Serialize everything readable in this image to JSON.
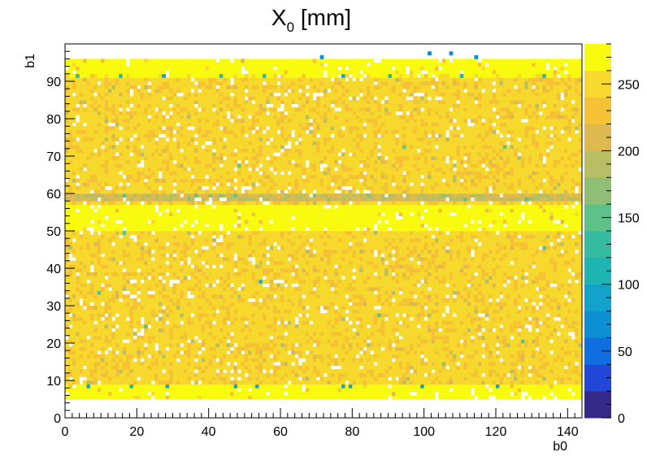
{
  "chart_data": {
    "type": "heatmap",
    "title": "X",
    "title_subscript": "0",
    "title_suffix": " [mm]",
    "xlabel": "b0",
    "ylabel": "b1",
    "xlim": [
      0,
      144
    ],
    "ylim": [
      0,
      100
    ],
    "zlim": [
      0,
      280
    ],
    "x_ticks": [
      0,
      20,
      40,
      60,
      80,
      100,
      120,
      140
    ],
    "y_ticks": [
      0,
      10,
      20,
      30,
      40,
      50,
      60,
      70,
      80,
      90
    ],
    "z_ticks": [
      0,
      50,
      100,
      150,
      200,
      250
    ],
    "grid": false,
    "colormap": [
      "#352a87",
      "#2146d8",
      "#0f6fe0",
      "#0d8fd4",
      "#11a3cc",
      "#1fb4b4",
      "#35bca0",
      "#5fc18a",
      "#8ebf74",
      "#b9bd63",
      "#ddb94f",
      "#f5c236",
      "#f7d82c",
      "#f9fb0e"
    ],
    "filled_x_range": [
      0,
      144
    ],
    "filled_y_range": [
      5,
      96
    ],
    "rows": [
      {
        "y": [
          5,
          9
        ],
        "value": 278
      },
      {
        "y": [
          9,
          91
        ],
        "value": 245
      },
      {
        "y": [
          91,
          92
        ],
        "value": 265
      },
      {
        "y": [
          92,
          96
        ],
        "value": 278
      },
      {
        "y": [
          50,
          57
        ],
        "value": 275
      },
      {
        "y": [
          58,
          60
        ],
        "value": 200
      }
    ],
    "empty_fraction": 0.06,
    "outliers": [
      {
        "x": 71,
        "y": 96,
        "value": 60
      },
      {
        "x": 101,
        "y": 97,
        "value": 60
      },
      {
        "x": 107,
        "y": 97,
        "value": 60
      },
      {
        "x": 114,
        "y": 96,
        "value": 60
      },
      {
        "x": 3,
        "y": 91,
        "value": 100
      },
      {
        "x": 15,
        "y": 91,
        "value": 100
      },
      {
        "x": 27,
        "y": 91,
        "value": 90
      },
      {
        "x": 43,
        "y": 91,
        "value": 100
      },
      {
        "x": 55,
        "y": 91,
        "value": 100
      },
      {
        "x": 77,
        "y": 91,
        "value": 90
      },
      {
        "x": 90,
        "y": 91,
        "value": 100
      },
      {
        "x": 110,
        "y": 91,
        "value": 100
      },
      {
        "x": 133,
        "y": 91,
        "value": 100
      },
      {
        "x": 6,
        "y": 8,
        "value": 90
      },
      {
        "x": 18,
        "y": 8,
        "value": 100
      },
      {
        "x": 28,
        "y": 8,
        "value": 90
      },
      {
        "x": 47,
        "y": 8,
        "value": 80
      },
      {
        "x": 53,
        "y": 8,
        "value": 80
      },
      {
        "x": 77,
        "y": 8,
        "value": 80
      },
      {
        "x": 79,
        "y": 8,
        "value": 80
      },
      {
        "x": 99,
        "y": 8,
        "value": 90
      },
      {
        "x": 120,
        "y": 8,
        "value": 80
      },
      {
        "x": 54,
        "y": 36,
        "value": 110
      },
      {
        "x": 16,
        "y": 49,
        "value": 140
      },
      {
        "x": 48,
        "y": 67,
        "value": 150
      },
      {
        "x": 94,
        "y": 72,
        "value": 140
      },
      {
        "x": 122,
        "y": 72,
        "value": 150
      },
      {
        "x": 127,
        "y": 20,
        "value": 150
      },
      {
        "x": 133,
        "y": 45,
        "value": 150
      },
      {
        "x": 9,
        "y": 33,
        "value": 150
      },
      {
        "x": 22,
        "y": 24,
        "value": 150
      },
      {
        "x": 87,
        "y": 27,
        "value": 150
      },
      {
        "x": 105,
        "y": 14,
        "value": 160
      }
    ]
  }
}
